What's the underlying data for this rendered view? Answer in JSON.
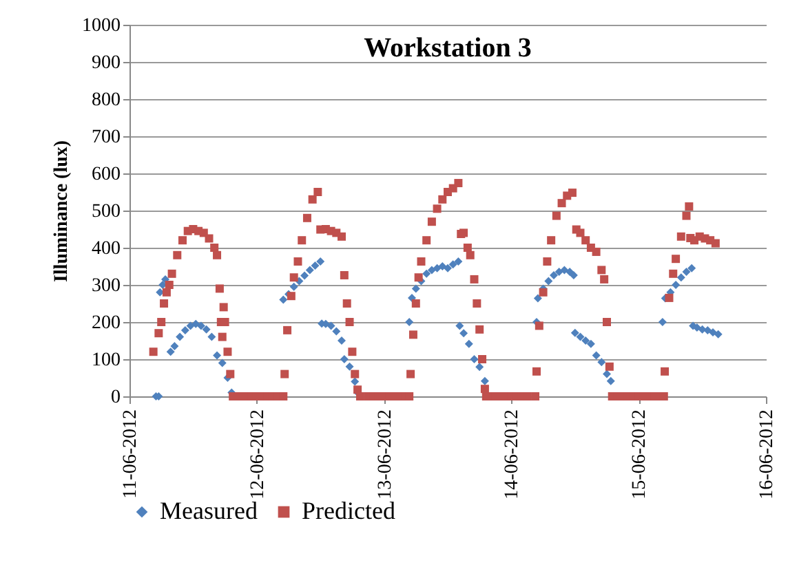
{
  "chart_data": {
    "type": "scatter",
    "title": "Workstation 3",
    "ylabel": "Illuminance (lux)",
    "xlim": [
      "2012-06-11",
      "2012-06-16"
    ],
    "ylim": [
      0,
      1000
    ],
    "xticks": [
      {
        "value": "2012-06-11",
        "label": "11-06-2012"
      },
      {
        "value": "2012-06-12",
        "label": "12-06-2012"
      },
      {
        "value": "2012-06-13",
        "label": "13-06-2012"
      },
      {
        "value": "2012-06-14",
        "label": "14-06-2012"
      },
      {
        "value": "2012-06-15",
        "label": "15-06-2012"
      },
      {
        "value": "2012-06-16",
        "label": "16-06-2012"
      }
    ],
    "yticks": [
      0,
      100,
      200,
      300,
      400,
      500,
      600,
      700,
      800,
      900,
      1000
    ],
    "grid": "y",
    "legend": "bottom",
    "series": [
      {
        "name": "Measured",
        "color": "#4f81bd",
        "marker": "diamond",
        "x": [
          "2012-06-11T05:00",
          "2012-06-11T05:30",
          "2012-06-11T05:45",
          "2012-06-11T06:15",
          "2012-06-11T06:45",
          "2012-06-11T07:45",
          "2012-06-11T08:30",
          "2012-06-11T09:30",
          "2012-06-11T10:30",
          "2012-06-11T11:30",
          "2012-06-11T12:30",
          "2012-06-11T13:30",
          "2012-06-11T14:30",
          "2012-06-11T15:30",
          "2012-06-11T16:30",
          "2012-06-11T17:30",
          "2012-06-11T18:30",
          "2012-06-11T19:15",
          "2012-06-12T05:00",
          "2012-06-12T06:00",
          "2012-06-12T07:00",
          "2012-06-12T08:00",
          "2012-06-12T09:00",
          "2012-06-12T10:00",
          "2012-06-12T11:00",
          "2012-06-12T12:00",
          "2012-06-12T12:15",
          "2012-06-12T13:00",
          "2012-06-12T14:00",
          "2012-06-12T15:00",
          "2012-06-12T16:00",
          "2012-06-12T16:30",
          "2012-06-12T17:30",
          "2012-06-12T18:30",
          "2012-06-12T19:00",
          "2012-06-13T04:45",
          "2012-06-13T05:15",
          "2012-06-13T06:00",
          "2012-06-13T07:00",
          "2012-06-13T08:00",
          "2012-06-13T09:00",
          "2012-06-13T10:00",
          "2012-06-13T11:00",
          "2012-06-13T12:00",
          "2012-06-13T13:00",
          "2012-06-13T14:00",
          "2012-06-13T14:15",
          "2012-06-13T15:00",
          "2012-06-13T16:00",
          "2012-06-13T17:00",
          "2012-06-13T18:00",
          "2012-06-13T19:00",
          "2012-06-14T04:45",
          "2012-06-14T05:00",
          "2012-06-14T06:00",
          "2012-06-14T07:00",
          "2012-06-14T08:00",
          "2012-06-14T09:00",
          "2012-06-14T10:00",
          "2012-06-14T11:00",
          "2012-06-14T11:45",
          "2012-06-14T12:00",
          "2012-06-14T13:00",
          "2012-06-14T14:00",
          "2012-06-14T15:00",
          "2012-06-14T16:00",
          "2012-06-14T17:00",
          "2012-06-14T18:00",
          "2012-06-14T18:45",
          "2012-06-15T04:30",
          "2012-06-15T05:00",
          "2012-06-15T06:00",
          "2012-06-15T07:00",
          "2012-06-15T08:00",
          "2012-06-15T09:00",
          "2012-06-15T10:00",
          "2012-06-15T10:15",
          "2012-06-15T11:00",
          "2012-06-15T12:00",
          "2012-06-15T13:00",
          "2012-06-15T14:00",
          "2012-06-15T15:00"
        ],
        "values": [
          0,
          0,
          280,
          300,
          315,
          120,
          135,
          160,
          178,
          190,
          195,
          190,
          180,
          160,
          110,
          90,
          50,
          10,
          260,
          275,
          295,
          310,
          325,
          340,
          352,
          363,
          196,
          195,
          190,
          175,
          150,
          100,
          80,
          40,
          10,
          200,
          265,
          290,
          310,
          330,
          340,
          345,
          350,
          345,
          355,
          363,
          190,
          170,
          141,
          100,
          79,
          41,
          200,
          264,
          290,
          310,
          326,
          335,
          340,
          335,
          326,
          171,
          160,
          150,
          141,
          110,
          92,
          60,
          41,
          200,
          264,
          280,
          300,
          320,
          335,
          345,
          190,
          185,
          180,
          178,
          172,
          167
        ]
      },
      {
        "name": "Predicted",
        "color": "#c0504d",
        "marker": "square",
        "x": [
          "2012-06-11T04:30",
          "2012-06-11T05:30",
          "2012-06-11T06:00",
          "2012-06-11T06:30",
          "2012-06-11T07:00",
          "2012-06-11T07:30",
          "2012-06-11T08:00",
          "2012-06-11T09:00",
          "2012-06-11T10:00",
          "2012-06-11T11:00",
          "2012-06-11T12:00",
          "2012-06-11T13:00",
          "2012-06-11T14:00",
          "2012-06-11T15:00",
          "2012-06-11T16:00",
          "2012-06-11T16:30",
          "2012-06-11T17:00",
          "2012-06-11T17:15",
          "2012-06-11T17:30",
          "2012-06-11T17:45",
          "2012-06-11T18:00",
          "2012-06-11T18:30",
          "2012-06-11T19:00",
          "2012-06-11T19:30",
          "2012-06-11T21:00",
          "2012-06-11T22:00",
          "2012-06-11T23:00",
          "2012-06-12T00:00",
          "2012-06-12T01:00",
          "2012-06-12T02:00",
          "2012-06-12T03:00",
          "2012-06-12T04:00",
          "2012-06-12T05:00",
          "2012-06-12T05:15",
          "2012-06-12T05:45",
          "2012-06-12T06:30",
          "2012-06-12T07:00",
          "2012-06-12T07:45",
          "2012-06-12T08:30",
          "2012-06-12T09:30",
          "2012-06-12T10:30",
          "2012-06-12T11:30",
          "2012-06-12T12:00",
          "2012-06-12T13:00",
          "2012-06-12T14:00",
          "2012-06-12T15:00",
          "2012-06-12T16:00",
          "2012-06-12T16:30",
          "2012-06-12T17:00",
          "2012-06-12T17:30",
          "2012-06-12T18:00",
          "2012-06-12T18:30",
          "2012-06-12T19:00",
          "2012-06-12T19:30",
          "2012-06-12T21:00",
          "2012-06-12T22:00",
          "2012-06-12T23:00",
          "2012-06-13T00:00",
          "2012-06-13T01:00",
          "2012-06-13T02:00",
          "2012-06-13T03:00",
          "2012-06-13T04:00",
          "2012-06-13T04:45",
          "2012-06-13T05:00",
          "2012-06-13T05:30",
          "2012-06-13T06:00",
          "2012-06-13T06:30",
          "2012-06-13T07:00",
          "2012-06-13T08:00",
          "2012-06-13T09:00",
          "2012-06-13T10:00",
          "2012-06-13T11:00",
          "2012-06-13T12:00",
          "2012-06-13T13:00",
          "2012-06-13T14:00",
          "2012-06-13T14:30",
          "2012-06-13T15:00",
          "2012-06-13T15:45",
          "2012-06-13T16:15",
          "2012-06-13T17:00",
          "2012-06-13T17:30",
          "2012-06-13T18:00",
          "2012-06-13T18:30",
          "2012-06-13T19:00",
          "2012-06-13T19:15",
          "2012-06-13T20:00",
          "2012-06-13T21:00",
          "2012-06-13T22:00",
          "2012-06-13T23:00",
          "2012-06-14T00:00",
          "2012-06-14T01:00",
          "2012-06-14T02:00",
          "2012-06-14T03:00",
          "2012-06-14T04:30",
          "2012-06-14T04:45",
          "2012-06-14T05:15",
          "2012-06-14T06:00",
          "2012-06-14T06:45",
          "2012-06-14T07:30",
          "2012-06-14T08:30",
          "2012-06-14T09:30",
          "2012-06-14T10:30",
          "2012-06-14T11:30",
          "2012-06-14T12:15",
          "2012-06-14T13:00",
          "2012-06-14T14:00",
          "2012-06-14T15:00",
          "2012-06-14T16:00",
          "2012-06-14T17:00",
          "2012-06-14T17:30",
          "2012-06-14T18:00",
          "2012-06-14T18:30",
          "2012-06-14T19:00",
          "2012-06-14T20:00",
          "2012-06-14T21:00",
          "2012-06-14T22:00",
          "2012-06-14T23:00",
          "2012-06-15T00:00",
          "2012-06-15T01:00",
          "2012-06-15T02:00",
          "2012-06-15T03:00",
          "2012-06-15T04:00",
          "2012-06-15T04:45",
          "2012-06-15T04:55",
          "2012-06-15T05:45",
          "2012-06-15T06:30",
          "2012-06-15T07:00",
          "2012-06-15T08:00",
          "2012-06-15T09:00",
          "2012-06-15T09:30",
          "2012-06-15T09:45",
          "2012-06-15T10:30",
          "2012-06-15T11:30",
          "2012-06-15T12:30",
          "2012-06-15T13:30",
          "2012-06-15T14:30"
        ],
        "values": [
          120,
          170,
          200,
          250,
          280,
          300,
          330,
          380,
          420,
          445,
          450,
          445,
          440,
          425,
          400,
          380,
          290,
          200,
          160,
          240,
          200,
          120,
          60,
          0,
          0,
          0,
          0,
          0,
          0,
          0,
          0,
          0,
          0,
          60,
          178,
          270,
          320,
          363,
          420,
          480,
          530,
          550,
          449,
          450,
          445,
          440,
          430,
          326,
          250,
          200,
          120,
          60,
          18,
          0,
          0,
          0,
          0,
          0,
          0,
          0,
          0,
          0,
          0,
          60,
          166,
          250,
          320,
          363,
          420,
          470,
          505,
          530,
          550,
          560,
          574,
          437,
          440,
          400,
          380,
          315,
          250,
          180,
          100,
          20,
          0,
          0,
          0,
          0,
          0,
          0,
          0,
          0,
          0,
          0,
          67,
          190,
          280,
          363,
          420,
          486,
          520,
          540,
          548,
          449,
          440,
          420,
          400,
          389,
          340,
          315,
          200,
          80,
          0,
          0,
          0,
          0,
          0,
          0,
          0,
          0,
          0,
          0,
          0,
          67,
          265,
          330,
          370,
          430,
          486,
          511,
          426,
          420,
          430,
          425,
          420,
          412
        ]
      }
    ]
  }
}
